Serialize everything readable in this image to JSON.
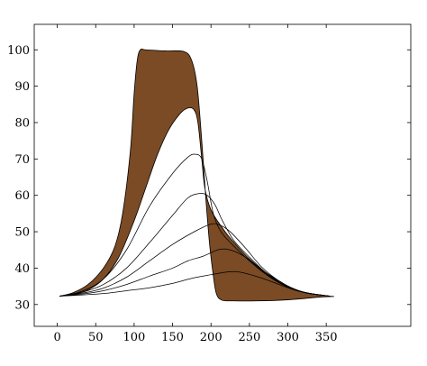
{
  "chart_data": {
    "type": "area",
    "title": "",
    "xlabel": "",
    "ylabel": "",
    "xlim": [
      -30,
      460
    ],
    "ylim": [
      24,
      107
    ],
    "x_ticks": [
      0,
      50,
      100,
      150,
      200,
      250,
      300,
      350
    ],
    "y_ticks": [
      30,
      40,
      50,
      60,
      70,
      80,
      90,
      100
    ],
    "grid": false,
    "legend": "none",
    "colors": {
      "fill": "#7a4b24",
      "line": "#000000",
      "frame": "#000000"
    },
    "band": {
      "upper": [
        [
          3,
          32.3
        ],
        [
          20,
          33.2
        ],
        [
          40,
          35.5
        ],
        [
          60,
          40
        ],
        [
          75,
          46
        ],
        [
          85,
          55
        ],
        [
          95,
          72
        ],
        [
          100,
          88
        ],
        [
          104,
          97
        ],
        [
          108,
          100
        ],
        [
          115,
          100
        ],
        [
          140,
          99.7
        ],
        [
          165,
          99.5
        ],
        [
          175,
          97
        ],
        [
          182,
          90
        ],
        [
          188,
          75
        ],
        [
          193,
          60
        ],
        [
          198,
          47
        ],
        [
          203,
          38
        ],
        [
          207,
          33
        ],
        [
          214,
          31.2
        ],
        [
          230,
          31
        ],
        [
          260,
          31
        ],
        [
          300,
          31.3
        ],
        [
          340,
          32
        ],
        [
          360,
          32.2
        ]
      ],
      "lower": [
        [
          3,
          32.3
        ],
        [
          20,
          32.8
        ],
        [
          40,
          34
        ],
        [
          60,
          37
        ],
        [
          80,
          43
        ],
        [
          100,
          53
        ],
        [
          115,
          62
        ],
        [
          130,
          71
        ],
        [
          145,
          78
        ],
        [
          160,
          82.5
        ],
        [
          170,
          84
        ],
        [
          178,
          83.5
        ],
        [
          183,
          80
        ],
        [
          188,
          70
        ],
        [
          192,
          62
        ],
        [
          200,
          56
        ],
        [
          215,
          51
        ],
        [
          230,
          47
        ],
        [
          250,
          42.5
        ],
        [
          270,
          39
        ],
        [
          290,
          36.3
        ],
        [
          310,
          34
        ],
        [
          330,
          33
        ],
        [
          350,
          32.4
        ],
        [
          360,
          32.2
        ]
      ]
    },
    "series": [
      {
        "values": [
          [
            3,
            32.3
          ],
          [
            30,
            33.5
          ],
          [
            60,
            37
          ],
          [
            90,
            45
          ],
          [
            120,
            57
          ],
          [
            150,
            66
          ],
          [
            170,
            70.5
          ],
          [
            180,
            71.3
          ],
          [
            188,
            70
          ],
          [
            195,
            64
          ],
          [
            203,
            55
          ],
          [
            213,
            50
          ],
          [
            230,
            46
          ],
          [
            250,
            42
          ],
          [
            270,
            38.5
          ],
          [
            290,
            35.8
          ],
          [
            310,
            34
          ],
          [
            330,
            33
          ],
          [
            355,
            32.3
          ]
        ]
      },
      {
        "values": [
          [
            3,
            32.3
          ],
          [
            30,
            33.2
          ],
          [
            60,
            35.5
          ],
          [
            90,
            40
          ],
          [
            120,
            47
          ],
          [
            150,
            54.5
          ],
          [
            170,
            59.3
          ],
          [
            185,
            60.5
          ],
          [
            195,
            60
          ],
          [
            205,
            57.5
          ],
          [
            215,
            53
          ],
          [
            230,
            47.5
          ],
          [
            250,
            43
          ],
          [
            270,
            39
          ],
          [
            290,
            36
          ],
          [
            310,
            34
          ],
          [
            330,
            33
          ],
          [
            355,
            32.3
          ]
        ]
      },
      {
        "values": [
          [
            3,
            32.3
          ],
          [
            30,
            33
          ],
          [
            60,
            34.5
          ],
          [
            90,
            37.5
          ],
          [
            120,
            42
          ],
          [
            150,
            46.5
          ],
          [
            180,
            50.2
          ],
          [
            200,
            52.1
          ],
          [
            212,
            51.8
          ],
          [
            225,
            50
          ],
          [
            245,
            45.5
          ],
          [
            265,
            40.5
          ],
          [
            285,
            37
          ],
          [
            305,
            34.6
          ],
          [
            325,
            33.2
          ],
          [
            355,
            32.3
          ]
        ]
      },
      {
        "values": [
          [
            3,
            32.3
          ],
          [
            30,
            32.8
          ],
          [
            60,
            33.8
          ],
          [
            90,
            35.5
          ],
          [
            120,
            37.8
          ],
          [
            150,
            40
          ],
          [
            170,
            42
          ],
          [
            190,
            43.3
          ],
          [
            210,
            45.1
          ],
          [
            225,
            45
          ],
          [
            245,
            43
          ],
          [
            265,
            39.5
          ],
          [
            285,
            36.5
          ],
          [
            305,
            34.5
          ],
          [
            325,
            33.1
          ],
          [
            355,
            32.3
          ]
        ]
      },
      {
        "values": [
          [
            3,
            32.3
          ],
          [
            30,
            32.6
          ],
          [
            60,
            33
          ],
          [
            90,
            33.8
          ],
          [
            120,
            34.6
          ],
          [
            150,
            35.8
          ],
          [
            175,
            37.2
          ],
          [
            200,
            38.2
          ],
          [
            220,
            38.9
          ],
          [
            235,
            39
          ],
          [
            255,
            38
          ],
          [
            275,
            36.6
          ],
          [
            295,
            35
          ],
          [
            315,
            33.6
          ],
          [
            335,
            32.8
          ],
          [
            355,
            32.3
          ]
        ]
      }
    ]
  }
}
